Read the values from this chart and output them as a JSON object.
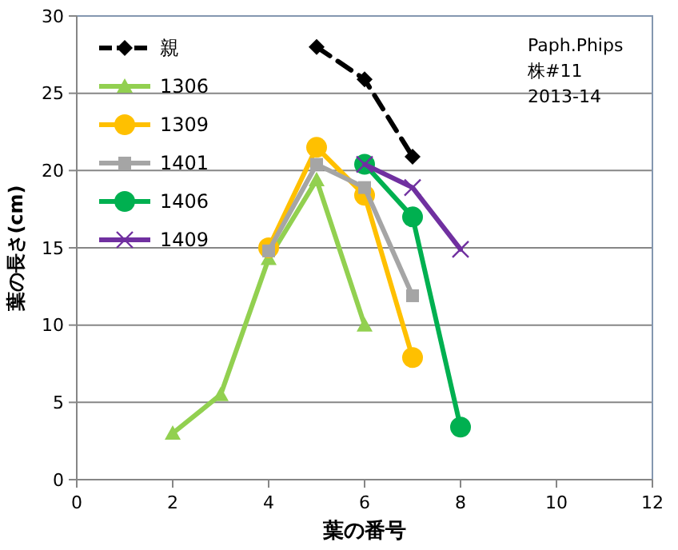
{
  "chart_data": {
    "type": "line",
    "xlabel": "葉の番号",
    "ylabel": "葉の長さ(cm)",
    "xlim": [
      0,
      12
    ],
    "xticks": [
      0,
      2,
      4,
      6,
      8,
      10,
      12
    ],
    "ylim": [
      0,
      30
    ],
    "yticks": [
      0,
      5,
      10,
      15,
      20,
      25,
      30
    ],
    "grid": "y",
    "legend": "top left",
    "annotations": [
      "Paph.Phips",
      "株#11",
      "2013-14"
    ],
    "series": [
      {
        "name": "親",
        "color": "#000000",
        "x": [
          5,
          6,
          7
        ],
        "values": [
          28,
          25.9,
          20.9
        ],
        "marker": "diamond",
        "line_style": "dashed"
      },
      {
        "name": "1306",
        "color": "#92d050",
        "x": [
          2,
          3,
          4,
          5,
          6
        ],
        "values": [
          3,
          5.5,
          14.3,
          19.4,
          10
        ],
        "marker": "triangle",
        "line_style": "solid"
      },
      {
        "name": "1309",
        "color": "#ffc000",
        "x": [
          4,
          5,
          6,
          7
        ],
        "values": [
          15,
          21.5,
          18.4,
          7.9
        ],
        "marker": "circle",
        "line_style": "solid"
      },
      {
        "name": "1401",
        "color": "#a5a5a5",
        "x": [
          4,
          5,
          6,
          7
        ],
        "values": [
          14.8,
          20.4,
          18.9,
          11.9
        ],
        "marker": "square",
        "line_style": "solid"
      },
      {
        "name": "1406",
        "color": "#00b050",
        "x": [
          6,
          7,
          8
        ],
        "values": [
          20.4,
          17,
          3.4
        ],
        "marker": "circle",
        "line_style": "solid"
      },
      {
        "name": "1409",
        "color": "#7030a0",
        "x": [
          6,
          7,
          8
        ],
        "values": [
          20.4,
          18.9,
          14.9
        ],
        "marker": "cross",
        "line_style": "solid"
      }
    ]
  }
}
